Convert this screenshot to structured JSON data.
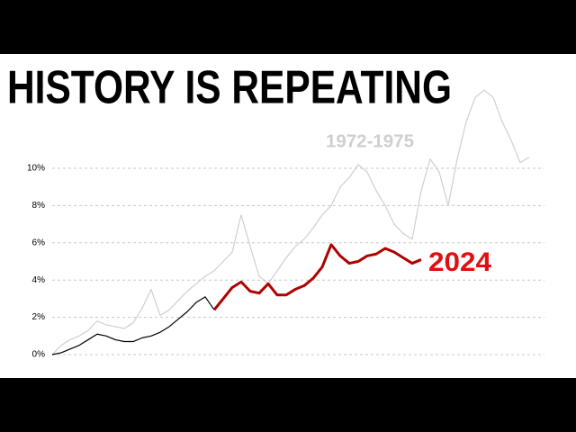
{
  "chart_data": {
    "type": "line",
    "title": "HISTORY IS REPEATING",
    "ylim": [
      0,
      14.5
    ],
    "yticks": [
      {
        "value": 0,
        "label": "0%"
      },
      {
        "value": 2,
        "label": "2%"
      },
      {
        "value": 4,
        "label": "4%"
      },
      {
        "value": 6,
        "label": "6%"
      },
      {
        "value": 8,
        "label": "8%"
      },
      {
        "value": 10,
        "label": "10%"
      }
    ],
    "grid": true,
    "series": [
      {
        "name": "1972-1975",
        "color": "#cfcfcf",
        "values": [
          0,
          0.5,
          0.8,
          1.0,
          1.3,
          1.8,
          1.6,
          1.5,
          1.4,
          1.7,
          2.5,
          3.5,
          2.1,
          2.4,
          2.9,
          3.4,
          3.8,
          4.2,
          4.5,
          5.0,
          5.5,
          7.5,
          5.8,
          4.2,
          3.8,
          4.5,
          5.2,
          5.8,
          6.2,
          6.8,
          7.5,
          8.0,
          9.0,
          9.5,
          10.2,
          9.8,
          8.8,
          8.0,
          7.0,
          6.5,
          6.2,
          8.8,
          10.5,
          9.8,
          8.0,
          10.5,
          12.5,
          13.8,
          14.2,
          13.8,
          12.5,
          11.5,
          10.3,
          10.6
        ]
      },
      {
        "color": "#000000",
        "values": [
          0,
          0.1,
          0.3,
          0.5,
          0.8,
          1.1,
          1.0,
          0.8,
          0.7,
          0.7,
          0.9,
          1.0,
          1.2,
          1.5,
          1.9,
          2.3,
          2.8,
          3.1,
          2.4,
          null,
          null,
          null,
          null,
          null,
          null,
          null,
          null,
          null,
          null,
          null,
          null,
          null,
          null,
          null,
          null,
          null,
          null,
          null,
          null,
          null,
          null,
          null,
          null,
          null,
          null,
          null,
          null,
          null,
          null,
          null,
          null,
          null,
          null,
          null
        ]
      },
      {
        "name": "2024",
        "color": "#b00000",
        "values": [
          null,
          null,
          null,
          null,
          null,
          null,
          null,
          null,
          null,
          null,
          null,
          null,
          null,
          null,
          null,
          null,
          null,
          null,
          2.4,
          3.0,
          3.6,
          3.9,
          3.4,
          3.3,
          3.8,
          3.2,
          3.2,
          3.5,
          3.7,
          4.1,
          4.7,
          5.9,
          5.3,
          4.9,
          5.0,
          5.3,
          5.4,
          5.7,
          5.5,
          5.2,
          4.9,
          5.1,
          null,
          null,
          null,
          null,
          null,
          null,
          null,
          null,
          null,
          null,
          null,
          null
        ]
      }
    ]
  }
}
